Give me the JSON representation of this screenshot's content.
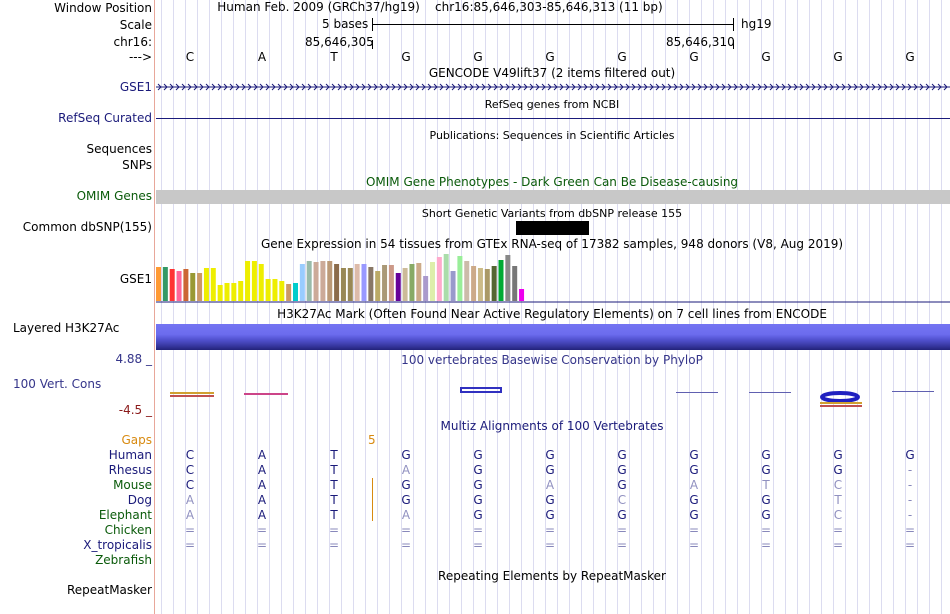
{
  "labels": {
    "window_position": "Window Position",
    "scale": "Scale",
    "chrom": "chr16:",
    "arrow": "--->",
    "gse1": "GSE1",
    "refseq": "RefSeq Curated",
    "sequences": "Sequences",
    "snps": "SNPs",
    "omim": "OMIM Genes",
    "dbsnp": "Common dbSNP(155)",
    "gse1_gtex": "GSE1",
    "h3k27ac": "Layered H3K27Ac",
    "cons_max": "4.88 _",
    "cons_label": "100 Vert. Cons",
    "cons_min": "-4.5 _",
    "gaps": "Gaps",
    "repeatmasker": "RepeatMasker"
  },
  "header": {
    "position_text": "Human Feb. 2009 (GRCh37/hg19)    chr16:85,646,303-85,646,313 (11 bp)",
    "scale_text": "5 bases",
    "assembly": "hg19",
    "coord_left": "85,646,305",
    "coord_right": "85,646,310"
  },
  "ref_bases": [
    "C",
    "A",
    "T",
    "G",
    "G",
    "G",
    "G",
    "G",
    "G",
    "G",
    "G"
  ],
  "tracks": {
    "gencode_title": "GENCODE V49lift37 (2 items filtered out)",
    "refseq_title": "RefSeq genes from NCBI",
    "publications_title": "Publications: Sequences in Scientific Articles",
    "omim_title": "OMIM Gene Phenotypes - Dark Green Can Be Disease-causing",
    "dbsnp_title": "Short Genetic Variants from dbSNP release 155",
    "gtex_title": "Gene Expression in 54 tissues from GTEx RNA-seq of 17382 samples, 948 donors (V8, Aug 2019)",
    "h3k27ac_title": "H3K27Ac Mark (Often Found Near Active Regulatory Elements) on 7 cell lines from ENCODE",
    "phylop_title": "100 vertebrates Basewise Conservation by PhyloP",
    "multiz_title": "Multiz Alignments of 100 Vertebrates",
    "gap_count": "5",
    "repeatmasker_title": "Repeating Elements by RepeatMasker"
  },
  "alignment": [
    {
      "species": "Human",
      "bases": [
        "C",
        "A",
        "T",
        "G",
        "G",
        "G",
        "G",
        "G",
        "G",
        "G",
        "G"
      ]
    },
    {
      "species": "Rhesus",
      "bases": [
        "C",
        "A",
        "T",
        "A",
        "G",
        "G",
        "G",
        "G",
        "G",
        "G",
        "-"
      ]
    },
    {
      "species": "Mouse",
      "bases": [
        "C",
        "A",
        "T",
        "G",
        "G",
        "A",
        "G",
        "A",
        "T",
        "C",
        "-"
      ]
    },
    {
      "species": "Dog",
      "bases": [
        "A",
        "A",
        "T",
        "G",
        "G",
        "G",
        "C",
        "G",
        "G",
        "T",
        "-"
      ]
    },
    {
      "species": "Elephant",
      "bases": [
        "A",
        "A",
        "T",
        "A",
        "G",
        "G",
        "G",
        "G",
        "G",
        "C",
        "-"
      ]
    },
    {
      "species": "Chicken",
      "bases": [
        "=",
        "=",
        "=",
        "=",
        "=",
        "=",
        "=",
        "=",
        "=",
        "=",
        "="
      ]
    },
    {
      "species": "X_tropicalis",
      "bases": [
        "=",
        "=",
        "=",
        "=",
        "=",
        "=",
        "=",
        "=",
        "=",
        "=",
        "="
      ]
    },
    {
      "species": "Zebrafish",
      "bases": [
        "",
        "",
        "",
        "",
        "",
        "",
        "",
        "",
        "",
        "",
        ""
      ]
    }
  ],
  "gtex_values": [
    34,
    34,
    32,
    30,
    32,
    28,
    28,
    33,
    33,
    16,
    18,
    18,
    20,
    40,
    40,
    37,
    22,
    22,
    20,
    17,
    18,
    37,
    40,
    39,
    40,
    40,
    37,
    33,
    33,
    37,
    37,
    34,
    30,
    36,
    36,
    28,
    33,
    37,
    38,
    25,
    39,
    44,
    47,
    30,
    45,
    40,
    35,
    33,
    32,
    35,
    41,
    46,
    35,
    12
  ],
  "gtex_colors": [
    "#ff9933",
    "#339966",
    "#ff3333",
    "#ff6699",
    "#cc6633",
    "#999933",
    "#cc9966",
    "#eeee00",
    "#eeee00",
    "#eeee00",
    "#eeee00",
    "#eeee00",
    "#eeee00",
    "#eeee00",
    "#eeee00",
    "#eeee00",
    "#eeee00",
    "#eeee00",
    "#eeee00",
    "#cc9966",
    "#00cccc",
    "#99ccff",
    "#99bbaa",
    "#ccaa99",
    "#ccaa99",
    "#bb9977",
    "#8b6b4b",
    "#998855",
    "#998855",
    "#ddbbaa",
    "#9999ff",
    "#887766",
    "#bbaa66",
    "#aa9977",
    "#cc9988",
    "#660099",
    "#ccbb99",
    "#88aa66",
    "#ccaa88",
    "#aa99cc",
    "#ddeeaa",
    "#ffaacc",
    "#aaddaa",
    "#9999cc",
    "#99ee99",
    "#ccbbaa",
    "#ccaa88",
    "#ccbb88",
    "#aa9966",
    "#556633",
    "#00aa33",
    "#888888",
    "#777777",
    "#ee00ee"
  ],
  "colors": {
    "navy": "#1a1a7a",
    "omim_bar": "#c8c8c8",
    "h3k27ac": "#6f6ff0"
  }
}
